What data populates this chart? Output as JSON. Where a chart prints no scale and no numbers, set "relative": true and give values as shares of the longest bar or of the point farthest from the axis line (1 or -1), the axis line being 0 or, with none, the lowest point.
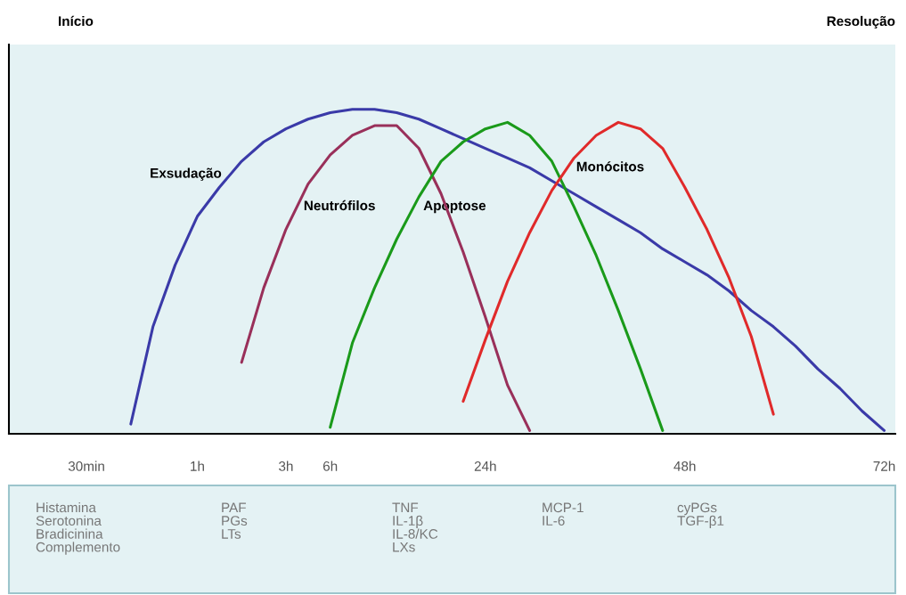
{
  "chart_data": {
    "type": "line",
    "relative": true,
    "tick_labels": "x",
    "grid": false,
    "legend": false,
    "marker": "none",
    "line_style": "solid",
    "categories": [
      null,
      null,
      null,
      "30min",
      null,
      null,
      null,
      null,
      "1h",
      null,
      null,
      null,
      "3h",
      null,
      "6h",
      null,
      null,
      null,
      null,
      null,
      null,
      "24h",
      null,
      null,
      null,
      null,
      null,
      null,
      null,
      null,
      "48h",
      null,
      null,
      null,
      null,
      null,
      null,
      null,
      null,
      "72h"
    ],
    "series": [
      {
        "name": "Exsudação",
        "color": "#3a3aa8",
        "values": [
          null,
          null,
          null,
          null,
          null,
          0.03,
          0.33,
          0.52,
          0.67,
          0.76,
          0.84,
          0.9,
          0.94,
          0.97,
          0.99,
          1.0,
          1.0,
          0.99,
          0.97,
          0.94,
          0.91,
          0.88,
          0.85,
          0.82,
          0.78,
          0.74,
          0.7,
          0.66,
          0.62,
          0.57,
          0.53,
          0.49,
          0.44,
          0.38,
          0.33,
          0.27,
          0.2,
          0.14,
          0.07,
          0.01
        ]
      },
      {
        "name": "Neutrófilos",
        "color": "#99305a",
        "values": [
          null,
          null,
          null,
          null,
          null,
          null,
          null,
          null,
          null,
          null,
          0.22,
          0.45,
          0.63,
          0.77,
          0.86,
          0.92,
          0.95,
          0.95,
          0.88,
          0.74,
          0.56,
          0.36,
          0.15,
          0.01,
          null,
          null,
          null,
          null,
          null,
          null,
          null,
          null,
          null,
          null,
          null,
          null,
          null,
          null,
          null,
          null
        ]
      },
      {
        "name": "Apoptose",
        "color": "#1a9a1a",
        "values": [
          null,
          null,
          null,
          null,
          null,
          null,
          null,
          null,
          null,
          null,
          null,
          null,
          null,
          null,
          0.02,
          0.28,
          0.45,
          0.6,
          0.73,
          0.84,
          0.9,
          0.94,
          0.96,
          0.92,
          0.84,
          0.7,
          0.55,
          0.38,
          0.2,
          0.01,
          null,
          null,
          null,
          null,
          null,
          null,
          null,
          null,
          null,
          null
        ]
      },
      {
        "name": "Monócitos",
        "color": "#e02a2a",
        "values": [
          null,
          null,
          null,
          null,
          null,
          null,
          null,
          null,
          null,
          null,
          null,
          null,
          null,
          null,
          null,
          null,
          null,
          null,
          null,
          null,
          0.1,
          0.29,
          0.47,
          0.62,
          0.75,
          0.85,
          0.92,
          0.96,
          0.94,
          0.88,
          0.76,
          0.63,
          0.48,
          0.3,
          0.06,
          null,
          null,
          null,
          null,
          null
        ]
      }
    ],
    "annotations": [
      "Início",
      "Resolução",
      "Histamina\nSerotonina\nBradicinina\nComplemento",
      "PAF\nPGs\nLTs",
      "TNF\nIL-1β\nIL-8/KC\nLXs",
      "MCP-1\nIL-6",
      "cyPGs\nTGF-β1"
    ]
  }
}
